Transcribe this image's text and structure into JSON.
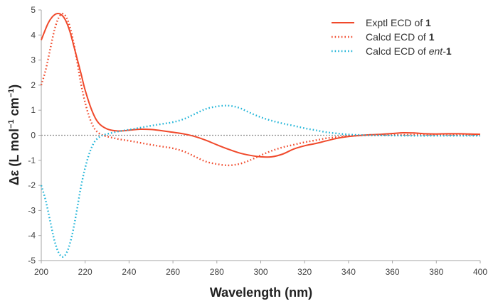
{
  "chart_data": {
    "type": "line",
    "title": "",
    "xlabel": "Wavelength (nm)",
    "ylabel": {
      "prefix": "Δε (L mol",
      "sup1": "−1",
      "mid": " cm",
      "sup2": "−1",
      "suffix": ")"
    },
    "xlim": [
      200,
      400
    ],
    "ylim": [
      -5,
      5
    ],
    "xticks": [
      200,
      220,
      240,
      260,
      280,
      300,
      320,
      340,
      360,
      380,
      400
    ],
    "yticks": [
      -5,
      -4,
      -3,
      -2,
      -1,
      0,
      1,
      2,
      3,
      4,
      5
    ],
    "zero_line": true,
    "grid": false,
    "legend_position": "top-right",
    "series": [
      {
        "name": "Exptl ECD of 1",
        "legend": {
          "text": "Exptl ECD of ",
          "bold": "1",
          "italic": ""
        },
        "color": "#f0492b",
        "style": "solid",
        "x": [
          200,
          203,
          205,
          207,
          209,
          211,
          213,
          215,
          218,
          220,
          223,
          226,
          230,
          235,
          240,
          245,
          250,
          255,
          260,
          265,
          270,
          275,
          280,
          285,
          290,
          295,
          300,
          305,
          310,
          315,
          320,
          325,
          330,
          335,
          340,
          345,
          350,
          355,
          360,
          365,
          370,
          375,
          380,
          385,
          390,
          395,
          400
        ],
        "y": [
          3.8,
          4.45,
          4.72,
          4.85,
          4.82,
          4.6,
          4.15,
          3.5,
          2.5,
          1.8,
          1.0,
          0.5,
          0.25,
          0.17,
          0.2,
          0.24,
          0.23,
          0.18,
          0.12,
          0.05,
          -0.05,
          -0.2,
          -0.38,
          -0.55,
          -0.7,
          -0.8,
          -0.86,
          -0.86,
          -0.75,
          -0.55,
          -0.42,
          -0.33,
          -0.22,
          -0.12,
          -0.05,
          -0.01,
          0.02,
          0.04,
          0.07,
          0.1,
          0.09,
          0.06,
          0.05,
          0.06,
          0.06,
          0.05,
          0.04
        ]
      },
      {
        "name": "Calcd ECD of 1",
        "legend": {
          "text": "Calcd ECD of ",
          "bold": "1",
          "italic": ""
        },
        "color": "#f0492b",
        "style": "dotted",
        "x": [
          200,
          202,
          204,
          206,
          208,
          210,
          212,
          214,
          216,
          218,
          220,
          222,
          224,
          226,
          228,
          230,
          235,
          240,
          245,
          250,
          255,
          260,
          265,
          270,
          275,
          280,
          285,
          290,
          295,
          300,
          305,
          310,
          315,
          320,
          325,
          330,
          335,
          340,
          345,
          350,
          360,
          370,
          380,
          390,
          400
        ],
        "y": [
          2.0,
          2.6,
          3.4,
          4.2,
          4.7,
          4.85,
          4.6,
          4.0,
          3.1,
          2.1,
          1.3,
          0.7,
          0.3,
          0.1,
          0.0,
          -0.05,
          -0.15,
          -0.22,
          -0.3,
          -0.38,
          -0.45,
          -0.52,
          -0.65,
          -0.85,
          -1.05,
          -1.15,
          -1.2,
          -1.15,
          -1.0,
          -0.8,
          -0.62,
          -0.48,
          -0.38,
          -0.28,
          -0.2,
          -0.12,
          -0.07,
          -0.03,
          -0.01,
          0.0,
          0.01,
          0.02,
          0.02,
          0.02,
          0.02
        ]
      },
      {
        "name": "Calcd ECD of ent-1",
        "legend": {
          "text": "Calcd ECD of ",
          "bold": "1",
          "italic": "ent"
        },
        "color": "#1fb4d8",
        "style": "dotted",
        "x": [
          200,
          202,
          204,
          206,
          208,
          210,
          212,
          214,
          216,
          218,
          220,
          222,
          224,
          226,
          228,
          230,
          235,
          240,
          245,
          250,
          255,
          260,
          265,
          270,
          275,
          280,
          285,
          290,
          295,
          300,
          305,
          310,
          315,
          320,
          325,
          330,
          335,
          340,
          345,
          350,
          360,
          370,
          380,
          390,
          400
        ],
        "y": [
          -2.0,
          -2.6,
          -3.4,
          -4.2,
          -4.7,
          -4.85,
          -4.6,
          -4.0,
          -3.1,
          -2.1,
          -1.3,
          -0.7,
          -0.3,
          -0.1,
          0.0,
          0.05,
          0.15,
          0.22,
          0.3,
          0.38,
          0.45,
          0.52,
          0.65,
          0.85,
          1.05,
          1.15,
          1.18,
          1.1,
          0.9,
          0.72,
          0.58,
          0.47,
          0.38,
          0.28,
          0.2,
          0.12,
          0.07,
          0.03,
          0.01,
          0.0,
          -0.01,
          -0.02,
          -0.02,
          -0.02,
          -0.02
        ]
      }
    ]
  }
}
